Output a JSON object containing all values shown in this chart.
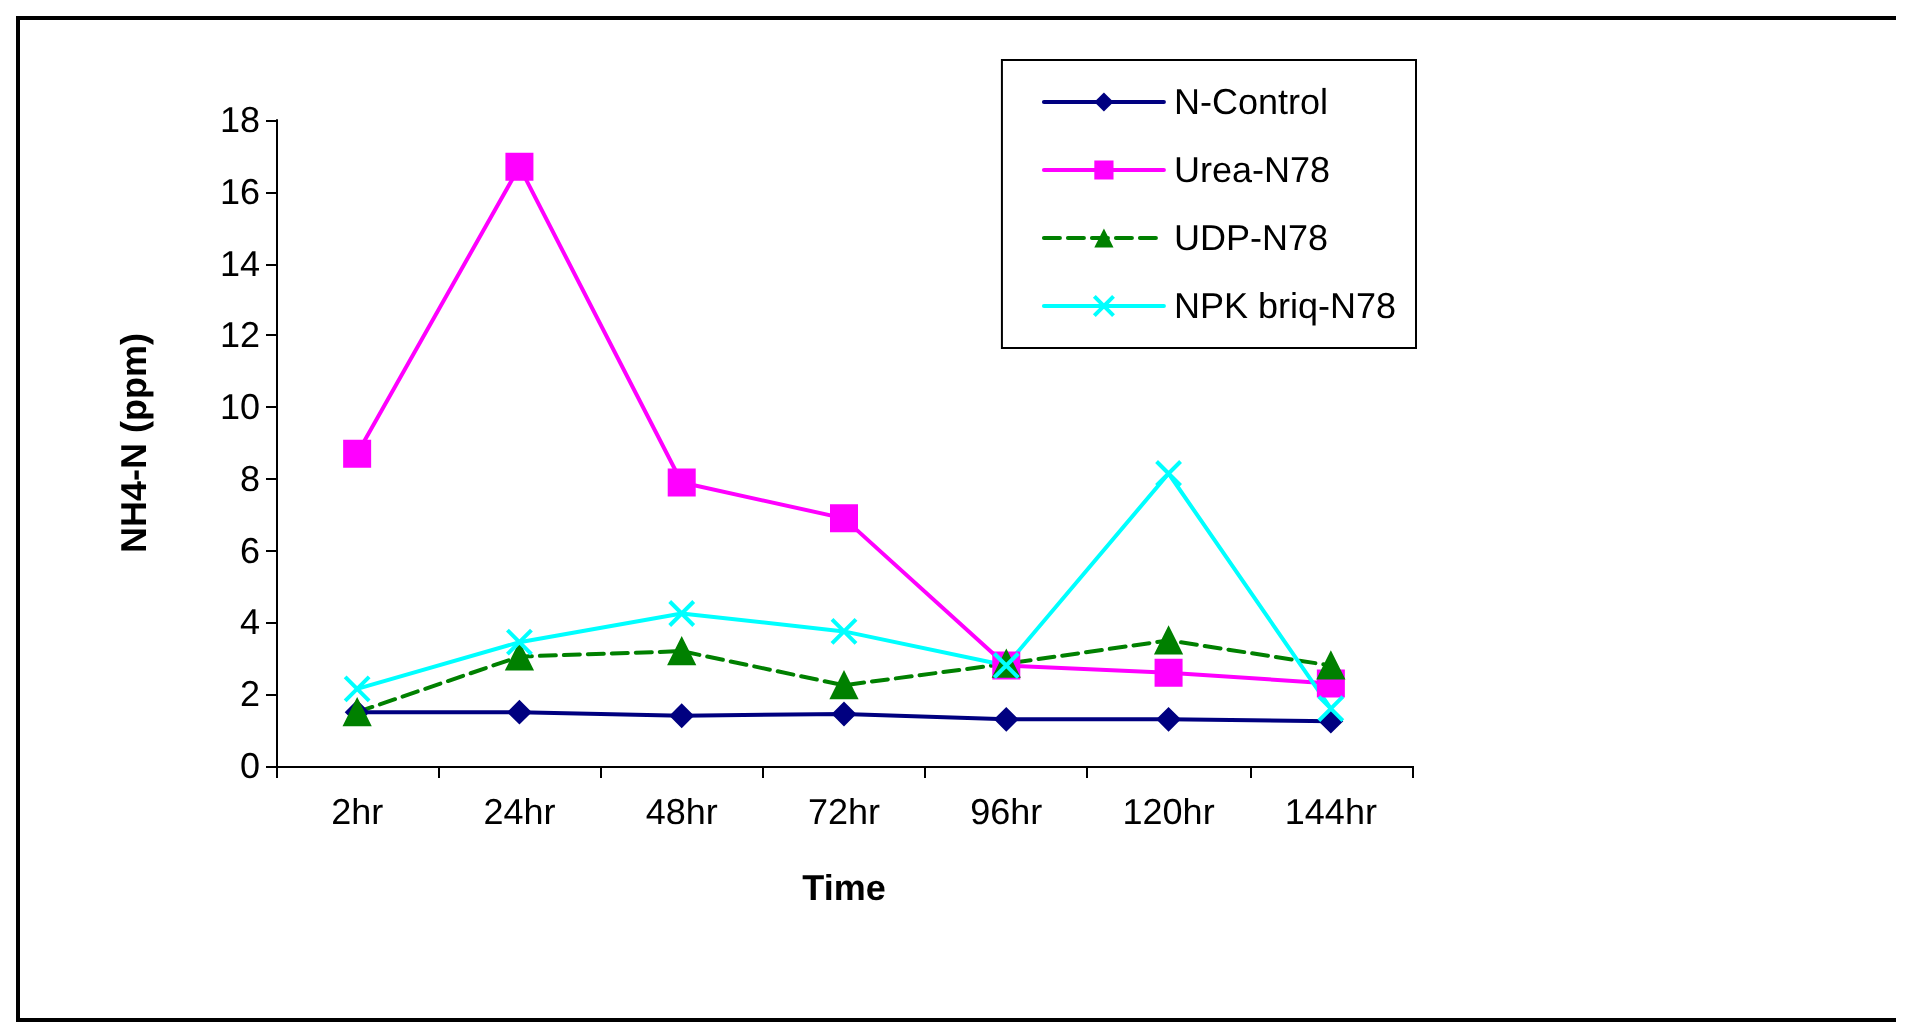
{
  "chart_data": {
    "type": "line",
    "xlabel": "Time",
    "ylabel": "NH4-N (ppm)",
    "categories": [
      "2hr",
      "24hr",
      "48hr",
      "72hr",
      "96hr",
      "120hr",
      "144hr"
    ],
    "series": [
      {
        "name": "N-Control",
        "color": "#000080",
        "marker": "diamond",
        "line_style": "solid",
        "values": [
          1.5,
          1.5,
          1.4,
          1.45,
          1.3,
          1.3,
          1.25
        ]
      },
      {
        "name": "Urea-N78",
        "color": "#ff00ff",
        "marker": "square",
        "line_style": "solid",
        "values": [
          8.7,
          16.7,
          7.9,
          6.9,
          2.8,
          2.6,
          2.3
        ]
      },
      {
        "name": "UDP-N78",
        "color": "#008000",
        "marker": "triangle",
        "line_style": "dashed",
        "values": [
          1.5,
          3.05,
          3.2,
          2.25,
          2.85,
          3.5,
          2.8
        ]
      },
      {
        "name": "NPK briq-N78",
        "color": "#00ffff",
        "marker": "cross",
        "line_style": "solid",
        "values": [
          2.15,
          3.45,
          4.25,
          3.75,
          2.8,
          8.15,
          1.6
        ]
      }
    ],
    "ylim": [
      0,
      18
    ],
    "yticks": [
      0,
      2,
      4,
      6,
      8,
      10,
      12,
      14,
      16,
      18
    ],
    "grid": false,
    "legend": "top right"
  }
}
